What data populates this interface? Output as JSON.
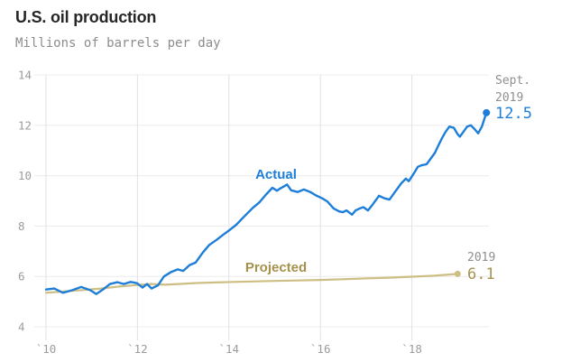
{
  "header": {
    "title": "U.S. oil production",
    "subtitle": "Millions of barrels per day"
  },
  "labels": {
    "actual": "Actual",
    "projected": "Projected"
  },
  "colors": {
    "actual_line": "#1d7ed9",
    "projected_line": "#cdbe84",
    "projected_text": "#a6934e",
    "annotation_gray": "#8f8f8f",
    "axis_text": "#9c9c9c",
    "grid_horizontal": "#ececec",
    "grid_vertical": "#e2e2e2"
  },
  "chart_data": {
    "type": "line",
    "title": "U.S. oil production",
    "ylabel": "Millions of barrels per day",
    "xlabel": "",
    "ylim": [
      4,
      14
    ],
    "xlim": [
      2010,
      2019.85
    ],
    "grid": true,
    "legend_position": "inline-labels",
    "y_ticks": [
      14,
      12,
      10,
      8,
      6,
      4
    ],
    "x_ticks": [
      2010,
      2012,
      2014,
      2016,
      2018
    ],
    "x_ticklabels": [
      "`10",
      "`12",
      "`14",
      "`16",
      "`18"
    ],
    "series": [
      {
        "name": "Actual",
        "color": "#1d7ed9",
        "end_dot": true,
        "x": [
          2010.0,
          2010.18,
          2010.37,
          2010.57,
          2010.77,
          2010.97,
          2011.1,
          2011.26,
          2011.4,
          2011.56,
          2011.7,
          2011.85,
          2011.99,
          2012.11,
          2012.21,
          2012.31,
          2012.45,
          2012.58,
          2012.74,
          2012.88,
          2013.0,
          2013.14,
          2013.27,
          2013.43,
          2013.57,
          2013.73,
          2013.87,
          2014.02,
          2014.16,
          2014.32,
          2014.52,
          2014.67,
          2014.81,
          2014.95,
          2015.05,
          2015.11,
          2015.21,
          2015.27,
          2015.36,
          2015.5,
          2015.64,
          2015.78,
          2015.9,
          2016.04,
          2016.15,
          2016.29,
          2016.41,
          2016.49,
          2016.57,
          2016.69,
          2016.77,
          2016.86,
          2016.94,
          2017.04,
          2017.14,
          2017.28,
          2017.4,
          2017.51,
          2017.63,
          2017.77,
          2017.87,
          2017.93,
          2018.03,
          2018.13,
          2018.22,
          2018.32,
          2018.42,
          2018.5,
          2018.58,
          2018.66,
          2018.74,
          2018.82,
          2018.92,
          2019.0,
          2019.05,
          2019.13,
          2019.21,
          2019.29,
          2019.37,
          2019.45,
          2019.53,
          2019.63
        ],
        "values": [
          5.48,
          5.52,
          5.35,
          5.45,
          5.58,
          5.45,
          5.3,
          5.5,
          5.7,
          5.77,
          5.7,
          5.78,
          5.73,
          5.56,
          5.7,
          5.52,
          5.65,
          6.0,
          6.18,
          6.28,
          6.22,
          6.45,
          6.55,
          6.95,
          7.25,
          7.45,
          7.65,
          7.85,
          8.05,
          8.35,
          8.72,
          8.95,
          9.25,
          9.52,
          9.4,
          9.48,
          9.58,
          9.65,
          9.42,
          9.35,
          9.45,
          9.35,
          9.22,
          9.1,
          8.98,
          8.7,
          8.58,
          8.55,
          8.62,
          8.45,
          8.62,
          8.7,
          8.75,
          8.62,
          8.85,
          9.2,
          9.1,
          9.05,
          9.35,
          9.7,
          9.88,
          9.78,
          10.05,
          10.35,
          10.42,
          10.45,
          10.7,
          10.9,
          11.2,
          11.5,
          11.75,
          11.95,
          11.9,
          11.65,
          11.55,
          11.75,
          11.95,
          12.0,
          11.85,
          11.68,
          11.95,
          12.5
        ]
      },
      {
        "name": "Projected",
        "color": "#cdbe84",
        "end_dot": true,
        "x": [
          2010.0,
          2010.4,
          2010.8,
          2011.2,
          2011.6,
          2012.0,
          2012.3,
          2012.6,
          2012.9,
          2013.3,
          2013.7,
          2014.1,
          2014.5,
          2015.0,
          2015.5,
          2016.0,
          2016.5,
          2017.0,
          2017.5,
          2018.0,
          2018.5,
          2019.0
        ],
        "values": [
          5.35,
          5.4,
          5.46,
          5.52,
          5.6,
          5.66,
          5.7,
          5.67,
          5.7,
          5.74,
          5.76,
          5.78,
          5.8,
          5.82,
          5.84,
          5.86,
          5.89,
          5.92,
          5.95,
          5.99,
          6.03,
          6.1
        ]
      }
    ],
    "annotations": {
      "actual_end": {
        "line1": "Sept.",
        "line2": "2019",
        "value": "12.5"
      },
      "projected_end": {
        "line1": "2019",
        "value": "6.1"
      }
    }
  }
}
